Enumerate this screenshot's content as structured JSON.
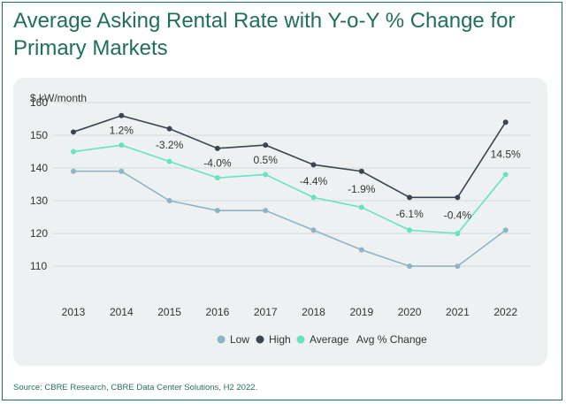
{
  "title": "Average Asking Rental Rate with Y-o-Y % Change for Primary Markets",
  "source": "Source: CBRE Research, CBRE Data Center Solutions, H2 2022.",
  "colors": {
    "title": "#1f6f5c",
    "panel": "#edf1f1",
    "low": "#8fb4c5",
    "high": "#3b4551",
    "average": "#66e3c2",
    "grid": "#d2dbdb"
  },
  "chart_data": {
    "type": "line",
    "title": "Average Asking Rental Rate with Y-o-Y % Change for Primary Markets",
    "ylabel": "$ kW/month",
    "xlabel": "",
    "categories": [
      "2013",
      "2014",
      "2015",
      "2016",
      "2017",
      "2018",
      "2019",
      "2020",
      "2021",
      "2022"
    ],
    "yticks": [
      110,
      120,
      130,
      140,
      150,
      160
    ],
    "ylim": [
      103,
      160
    ],
    "series": [
      {
        "name": "Low",
        "color": "#8fb4c5",
        "values": [
          139,
          139,
          130,
          127,
          127,
          121,
          115,
          110,
          110,
          121
        ]
      },
      {
        "name": "High",
        "color": "#3b4551",
        "values": [
          151,
          156,
          152,
          146,
          147,
          141,
          139,
          131,
          131,
          154
        ]
      },
      {
        "name": "Average",
        "color": "#66e3c2",
        "values": [
          145,
          147,
          142,
          137,
          138,
          131,
          128,
          121,
          120,
          138
        ]
      }
    ],
    "avg_pct_change": {
      "name": "Avg % Change",
      "labels": [
        "",
        "1.2%",
        "-3.2%",
        "-4.0%",
        "0.5%",
        "-4.4%",
        "-1.9%",
        "-6.1%",
        "-0.4%",
        "14.5%"
      ]
    },
    "legend": [
      "Low",
      "High",
      "Average",
      "Avg % Change"
    ],
    "legend_position": "bottom",
    "grid": true
  }
}
